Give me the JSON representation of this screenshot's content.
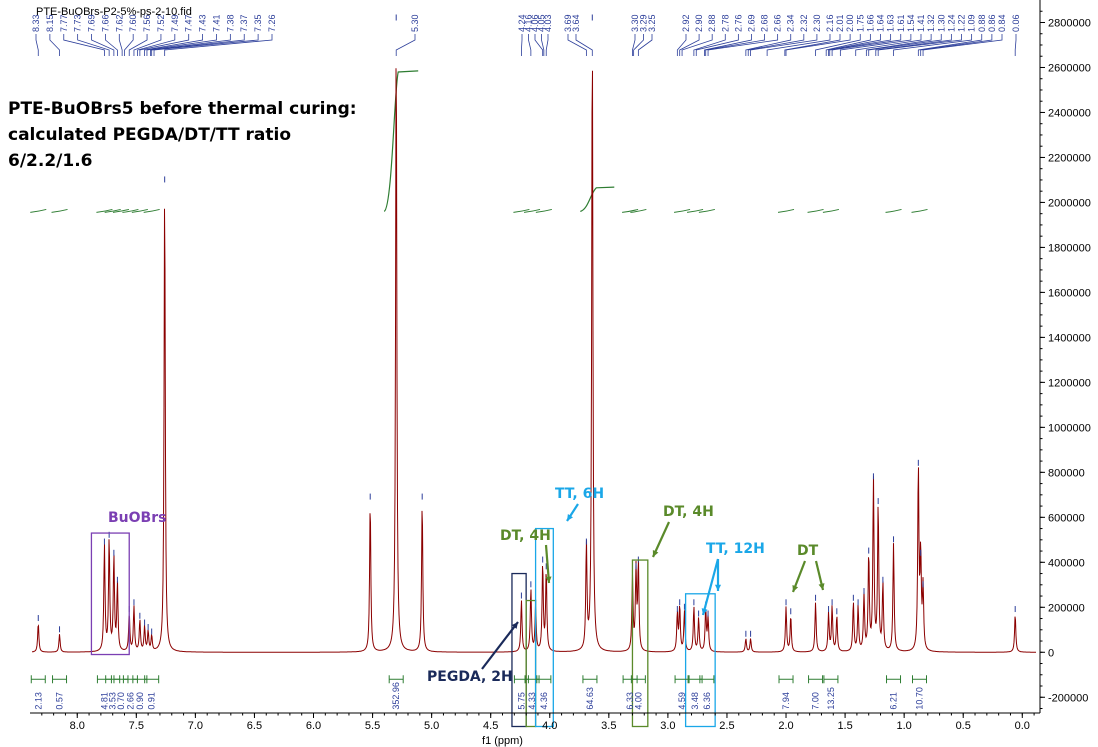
{
  "file_label": "PTE-BuOBrs-P2-5%-ps-2-10.fid",
  "annotation": {
    "line1": "PTE-BuOBrs5 before thermal curing:",
    "line2": "calculated PEGDA/DT/TT ratio",
    "line3": "6/2.2/1.6"
  },
  "labels": {
    "buobrs": "BuOBrs",
    "tt6": "TT, 6H",
    "dt4a": "DT, 4H",
    "dt4b": "DT, 4H",
    "tt12": "TT, 12H",
    "dt": "DT",
    "pegda": "PEGDA, 2H"
  },
  "colors": {
    "spectrum": "#8b0000",
    "integral": "#2e7d32",
    "peak_label": "#2c3e9a",
    "purple": "#7b3fb3",
    "cyan": "#1aa7e8",
    "green": "#5a8a2a",
    "navy": "#1a2a5a"
  },
  "chart_data": {
    "type": "line",
    "xlabel": "f1 (ppm)",
    "x_range": [
      8.4,
      -0.15
    ],
    "xticks": [
      "8.0",
      "7.5",
      "7.0",
      "6.5",
      "6.0",
      "5.5",
      "5.0",
      "4.5",
      "4.0",
      "3.5",
      "3.0",
      "2.5",
      "2.0",
      "1.5",
      "1.0",
      "0.5",
      "0.0"
    ],
    "y_range": [
      -270000,
      2900000
    ],
    "yticks": [
      "2800000",
      "2600000",
      "2400000",
      "2200000",
      "2000000",
      "1800000",
      "1600000",
      "1400000",
      "1200000",
      "1000000",
      "800000",
      "600000",
      "400000",
      "200000",
      "0",
      "-200000"
    ],
    "peaks": [
      {
        "x": 8.33,
        "y": 130000
      },
      {
        "x": 8.15,
        "y": 80000
      },
      {
        "x": 7.77,
        "y": 470000
      },
      {
        "x": 7.73,
        "y": 500000
      },
      {
        "x": 7.69,
        "y": 420000
      },
      {
        "x": 7.66,
        "y": 300000
      },
      {
        "x": 7.56,
        "y": 170000
      },
      {
        "x": 7.52,
        "y": 200000
      },
      {
        "x": 7.47,
        "y": 140000
      },
      {
        "x": 7.43,
        "y": 110000
      },
      {
        "x": 7.4,
        "y": 90000
      },
      {
        "x": 7.37,
        "y": 70000
      },
      {
        "x": 7.26,
        "y": 2080000
      },
      {
        "x": 5.52,
        "y": 670000
      },
      {
        "x": 5.3,
        "y": 2800000
      },
      {
        "x": 5.08,
        "y": 670000
      },
      {
        "x": 4.24,
        "y": 230000
      },
      {
        "x": 4.16,
        "y": 280000
      },
      {
        "x": 4.12,
        "y": 200000
      },
      {
        "x": 4.06,
        "y": 390000
      },
      {
        "x": 4.03,
        "y": 360000
      },
      {
        "x": 3.69,
        "y": 470000
      },
      {
        "x": 3.64,
        "y": 2800000
      },
      {
        "x": 3.3,
        "y": 330000
      },
      {
        "x": 3.27,
        "y": 360000
      },
      {
        "x": 3.25,
        "y": 390000
      },
      {
        "x": 2.92,
        "y": 170000
      },
      {
        "x": 2.9,
        "y": 200000
      },
      {
        "x": 2.86,
        "y": 180000
      },
      {
        "x": 2.78,
        "y": 200000
      },
      {
        "x": 2.74,
        "y": 150000
      },
      {
        "x": 2.68,
        "y": 190000
      },
      {
        "x": 2.66,
        "y": 150000
      },
      {
        "x": 2.34,
        "y": 60000
      },
      {
        "x": 2.3,
        "y": 60000
      },
      {
        "x": 2.0,
        "y": 200000
      },
      {
        "x": 1.96,
        "y": 160000
      },
      {
        "x": 1.75,
        "y": 220000
      },
      {
        "x": 1.64,
        "y": 170000
      },
      {
        "x": 1.61,
        "y": 200000
      },
      {
        "x": 1.57,
        "y": 160000
      },
      {
        "x": 1.43,
        "y": 220000
      },
      {
        "x": 1.39,
        "y": 200000
      },
      {
        "x": 1.34,
        "y": 250000
      },
      {
        "x": 1.3,
        "y": 430000
      },
      {
        "x": 1.26,
        "y": 760000
      },
      {
        "x": 1.22,
        "y": 650000
      },
      {
        "x": 1.18,
        "y": 300000
      },
      {
        "x": 1.09,
        "y": 480000
      },
      {
        "x": 0.88,
        "y": 820000
      },
      {
        "x": 0.86,
        "y": 420000
      },
      {
        "x": 0.84,
        "y": 280000
      },
      {
        "x": 0.06,
        "y": 170000
      }
    ],
    "peak_labels": [
      "8.33",
      "8.15",
      "7.77",
      "7.73",
      "7.69",
      "7.66",
      "7.62",
      "7.60",
      "7.56",
      "7.52",
      "7.49",
      "7.47",
      "7.43",
      "7.41",
      "7.38",
      "7.37",
      "7.35",
      "7.26",
      "5.30",
      "4.24",
      "4.16",
      "4.06",
      "4.05",
      "4.03",
      "3.69",
      "3.64",
      "3.30",
      "3.29",
      "3.25",
      "2.92",
      "2.90",
      "2.88",
      "2.78",
      "2.76",
      "2.69",
      "2.68",
      "2.66",
      "2.34",
      "2.32",
      "2.30",
      "2.16",
      "2.01",
      "2.00",
      "1.75",
      "1.66",
      "1.64",
      "1.63",
      "1.61",
      "1.54",
      "1.41",
      "1.32",
      "1.30",
      "1.24",
      "1.22",
      "1.09",
      "0.88",
      "0.86",
      "0.84",
      "0.06"
    ],
    "integrals": [
      {
        "x": 8.33,
        "value": "2.13"
      },
      {
        "x": 8.15,
        "value": "0.57"
      },
      {
        "x": 7.77,
        "value": "4.81"
      },
      {
        "x": 7.7,
        "value": "3.53"
      },
      {
        "x": 7.63,
        "value": "0.70"
      },
      {
        "x": 7.55,
        "value": "2.66"
      },
      {
        "x": 7.47,
        "value": "0.90"
      },
      {
        "x": 7.37,
        "value": "0.91"
      },
      {
        "x": 5.3,
        "value": "352.96"
      },
      {
        "x": 4.24,
        "value": "5.75"
      },
      {
        "x": 4.15,
        "value": "4.33"
      },
      {
        "x": 4.05,
        "value": "4.36"
      },
      {
        "x": 3.66,
        "value": "64.63"
      },
      {
        "x": 3.32,
        "value": "6.33"
      },
      {
        "x": 3.25,
        "value": "4.00"
      },
      {
        "x": 2.88,
        "value": "4.59"
      },
      {
        "x": 2.77,
        "value": "3.48"
      },
      {
        "x": 2.67,
        "value": "6.36"
      },
      {
        "x": 2.0,
        "value": "7.94"
      },
      {
        "x": 1.75,
        "value": "7.00"
      },
      {
        "x": 1.62,
        "value": "13.25"
      },
      {
        "x": 1.09,
        "value": "6.21"
      },
      {
        "x": 0.87,
        "value": "10.70"
      }
    ]
  }
}
